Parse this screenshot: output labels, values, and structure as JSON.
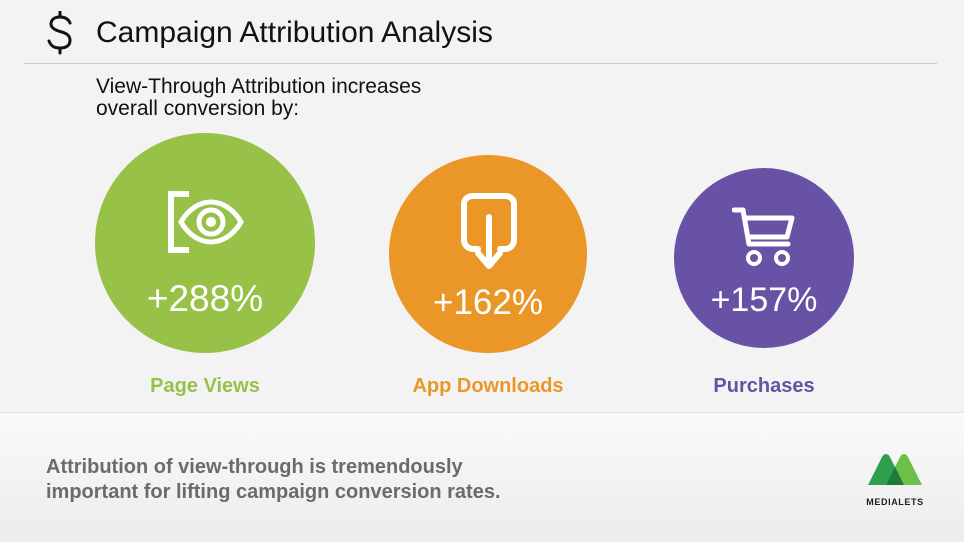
{
  "header": {
    "title": "Campaign Attribution Analysis",
    "icon": "dollar-sign-icon"
  },
  "intro": {
    "line1": "View-Through Attribution increases",
    "line2": "overall conversion by:"
  },
  "metrics": [
    {
      "value": "+288%",
      "label": "Page Views",
      "icon": "eye-icon",
      "color": "#98c147"
    },
    {
      "value": "+162%",
      "label": "App Downloads",
      "icon": "download-icon",
      "color": "#eb9727"
    },
    {
      "value": "+157%",
      "label": "Purchases",
      "icon": "shopping-cart-icon",
      "color": "#6752a5"
    }
  ],
  "footer": {
    "line1": "Attribution of view-through is tremendously",
    "line2": "important for lifting campaign conversion rates.",
    "logo_text": "MEDIALETS"
  }
}
